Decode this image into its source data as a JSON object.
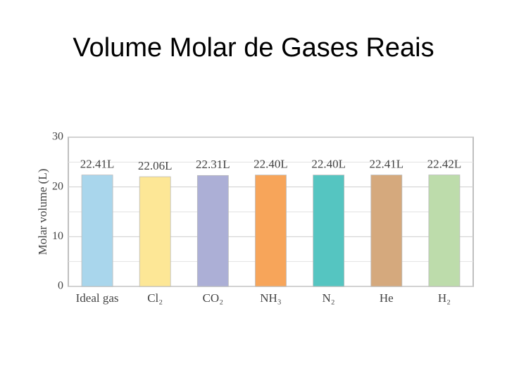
{
  "chart_data": {
    "type": "bar",
    "title": "Volume Molar de Gases Reais",
    "y_label": "Molar volume (L)",
    "categories": [
      "Ideal gas",
      "Cl₂",
      "CO₂",
      "NH₃",
      "N₂",
      "He",
      "H₂"
    ],
    "values": [
      22.41,
      22.06,
      22.31,
      22.4,
      22.4,
      22.41,
      22.42
    ],
    "value_labels": [
      "22.41L",
      "22.06L",
      "22.31L",
      "22.40L",
      "22.40L",
      "22.41L",
      "22.42L"
    ],
    "colors": [
      "#a9d6ec",
      "#fde796",
      "#acafd6",
      "#f7a55a",
      "#55c5c1",
      "#d5a97d",
      "#bddcab"
    ],
    "ylim": [
      0,
      30
    ],
    "yticks": [
      0,
      10,
      20,
      30
    ],
    "minor_yticks": [
      5,
      15,
      25
    ],
    "grid": true
  }
}
